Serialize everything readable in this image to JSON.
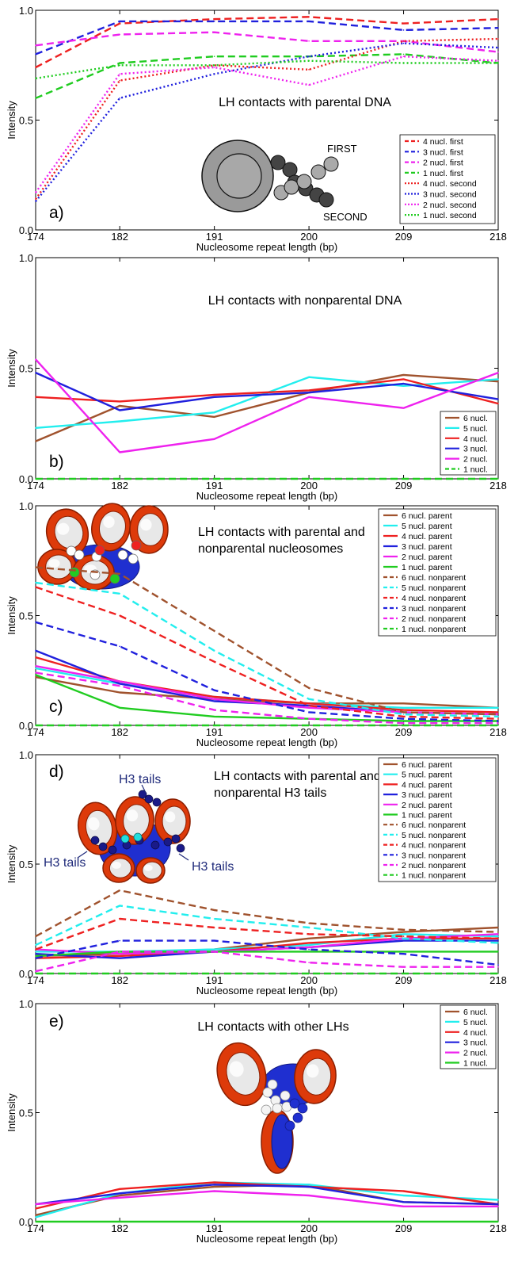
{
  "chart_data": [
    {
      "panel_label": "a)",
      "type": "line",
      "title": "LH contacts with parental DNA",
      "xlabel": "Nucleosome repeat length (bp)",
      "ylabel": "Intensity",
      "x": [
        174,
        182,
        191,
        200,
        209,
        218
      ],
      "x_ticks": [
        "174",
        "182",
        "191",
        "200",
        "209",
        "218"
      ],
      "y_ticks": [
        "0.0",
        "0.5",
        "1.0"
      ],
      "ylim": [
        0,
        1
      ],
      "legend_position": "bottom-right",
      "inset_labels": [
        "FIRST",
        "SECOND"
      ],
      "series": [
        {
          "name": "4 nucl. first",
          "color": "#ee2020",
          "style": "dashed",
          "values": [
            0.74,
            0.94,
            0.96,
            0.97,
            0.94,
            0.96
          ]
        },
        {
          "name": "3 nucl. first",
          "color": "#2020dd",
          "style": "dashed",
          "values": [
            0.8,
            0.95,
            0.95,
            0.95,
            0.91,
            0.92
          ]
        },
        {
          "name": "2 nucl. first",
          "color": "#ee22ee",
          "style": "dashed",
          "values": [
            0.84,
            0.89,
            0.9,
            0.86,
            0.86,
            0.81
          ]
        },
        {
          "name": "1 nucl. first",
          "color": "#20cc20",
          "style": "dashed",
          "values": [
            0.6,
            0.76,
            0.79,
            0.79,
            0.8,
            0.76
          ]
        },
        {
          "name": "4 nucl. second",
          "color": "#ee2020",
          "style": "dotted",
          "values": [
            0.14,
            0.68,
            0.75,
            0.73,
            0.86,
            0.87
          ]
        },
        {
          "name": "3 nucl. second",
          "color": "#2020dd",
          "style": "dotted",
          "values": [
            0.13,
            0.6,
            0.71,
            0.79,
            0.85,
            0.83
          ]
        },
        {
          "name": "2 nucl. second",
          "color": "#ee22ee",
          "style": "dotted",
          "values": [
            0.17,
            0.71,
            0.74,
            0.66,
            0.79,
            0.77
          ]
        },
        {
          "name": "1 nucl. second",
          "color": "#20cc20",
          "style": "dotted",
          "values": [
            0.69,
            0.75,
            0.75,
            0.77,
            0.76,
            0.76
          ]
        }
      ]
    },
    {
      "panel_label": "b)",
      "type": "line",
      "title": "LH contacts with nonparental DNA",
      "xlabel": "Nucleosome repeat length (bp)",
      "ylabel": "Intensity",
      "x": [
        174,
        182,
        191,
        200,
        209,
        218
      ],
      "x_ticks": [
        "174",
        "182",
        "191",
        "200",
        "209",
        "218"
      ],
      "y_ticks": [
        "0.0",
        "0.5",
        "1.0"
      ],
      "ylim": [
        0,
        1
      ],
      "legend_position": "bottom-right",
      "series": [
        {
          "name": "6 nucl.",
          "color": "#a0522d",
          "style": "solid",
          "values": [
            0.17,
            0.33,
            0.28,
            0.39,
            0.47,
            0.44
          ]
        },
        {
          "name": "5 nucl.",
          "color": "#22eeee",
          "style": "solid",
          "values": [
            0.23,
            0.26,
            0.3,
            0.46,
            0.42,
            0.45
          ]
        },
        {
          "name": "4 nucl.",
          "color": "#ee2020",
          "style": "solid",
          "values": [
            0.37,
            0.35,
            0.38,
            0.4,
            0.45,
            0.34
          ]
        },
        {
          "name": "3 nucl.",
          "color": "#2020dd",
          "style": "solid",
          "values": [
            0.48,
            0.31,
            0.37,
            0.39,
            0.43,
            0.36
          ]
        },
        {
          "name": "2 nucl.",
          "color": "#ee22ee",
          "style": "solid",
          "values": [
            0.54,
            0.12,
            0.18,
            0.37,
            0.32,
            0.48
          ]
        },
        {
          "name": "1 nucl.",
          "color": "#20cc20",
          "style": "dashed",
          "values": [
            0.0,
            0.0,
            0.0,
            0.0,
            0.0,
            0.0
          ]
        }
      ]
    },
    {
      "panel_label": "c)",
      "type": "line",
      "title": "LH contacts with parental and nonparental nucleosomes",
      "title_lines": [
        "LH contacts with parental and",
        "nonparental nucleosomes"
      ],
      "xlabel": "Nucleosome repeat length (bp)",
      "ylabel": "Intensity",
      "x": [
        174,
        182,
        191,
        200,
        209,
        218
      ],
      "x_ticks": [
        "174",
        "182",
        "191",
        "200",
        "209",
        "218"
      ],
      "y_ticks": [
        "0.0",
        "0.5",
        "1.0"
      ],
      "ylim": [
        0,
        1
      ],
      "legend_position": "top-right",
      "series": [
        {
          "name": "6 nucl. parent",
          "color": "#a0522d",
          "style": "solid",
          "values": [
            0.22,
            0.15,
            0.12,
            0.1,
            0.1,
            0.08
          ]
        },
        {
          "name": "5 nucl. parent",
          "color": "#22eeee",
          "style": "solid",
          "values": [
            0.26,
            0.19,
            0.13,
            0.1,
            0.08,
            0.08
          ]
        },
        {
          "name": "4 nucl. parent",
          "color": "#ee2020",
          "style": "solid",
          "values": [
            0.31,
            0.2,
            0.13,
            0.1,
            0.07,
            0.06
          ]
        },
        {
          "name": "3 nucl. parent",
          "color": "#2020dd",
          "style": "solid",
          "values": [
            0.34,
            0.19,
            0.11,
            0.09,
            0.06,
            0.05
          ]
        },
        {
          "name": "2 nucl. parent",
          "color": "#ee22ee",
          "style": "solid",
          "values": [
            0.27,
            0.2,
            0.12,
            0.08,
            0.06,
            0.05
          ]
        },
        {
          "name": "1 nucl. parent",
          "color": "#20cc20",
          "style": "solid",
          "values": [
            0.23,
            0.08,
            0.04,
            0.03,
            0.02,
            0.02
          ]
        },
        {
          "name": "6 nucl. nonparent",
          "color": "#a0522d",
          "style": "dashed",
          "values": [
            0.72,
            0.69,
            0.43,
            0.17,
            0.06,
            0.05
          ]
        },
        {
          "name": "5 nucl. nonparent",
          "color": "#22eeee",
          "style": "dashed",
          "values": [
            0.65,
            0.6,
            0.34,
            0.12,
            0.05,
            0.04
          ]
        },
        {
          "name": "4 nucl. nonparent",
          "color": "#ee2020",
          "style": "dashed",
          "values": [
            0.63,
            0.5,
            0.29,
            0.09,
            0.04,
            0.03
          ]
        },
        {
          "name": "3 nucl. nonparent",
          "color": "#2020dd",
          "style": "dashed",
          "values": [
            0.47,
            0.36,
            0.16,
            0.06,
            0.03,
            0.02
          ]
        },
        {
          "name": "2 nucl. nonparent",
          "color": "#ee22ee",
          "style": "dashed",
          "values": [
            0.24,
            0.18,
            0.07,
            0.03,
            0.01,
            0.01
          ]
        },
        {
          "name": "1 nucl. nonparent",
          "color": "#20cc20",
          "style": "dashed",
          "values": [
            0.0,
            0.0,
            0.0,
            0.0,
            0.0,
            0.0
          ]
        }
      ]
    },
    {
      "panel_label": "d)",
      "type": "line",
      "title": "LH contacts with parental and nonparental H3 tails",
      "title_lines": [
        "LH contacts with parental and",
        "nonparental H3 tails"
      ],
      "xlabel": "Nucleosome repeat length (bp)",
      "ylabel": "Intensity",
      "x": [
        174,
        182,
        191,
        200,
        209,
        218
      ],
      "x_ticks": [
        "174",
        "182",
        "191",
        "200",
        "209",
        "218"
      ],
      "y_ticks": [
        "0.0",
        "0.5",
        "1.0"
      ],
      "ylim": [
        0,
        1
      ],
      "legend_position": "top-right",
      "inset_labels": [
        "H3 tails",
        "H3 tails",
        "H3 tails"
      ],
      "series": [
        {
          "name": "6 nucl. parent",
          "color": "#a0522d",
          "style": "solid",
          "values": [
            0.08,
            0.09,
            0.11,
            0.16,
            0.19,
            0.21
          ]
        },
        {
          "name": "5 nucl. parent",
          "color": "#22eeee",
          "style": "solid",
          "values": [
            0.1,
            0.1,
            0.11,
            0.13,
            0.18,
            0.17
          ]
        },
        {
          "name": "4 nucl. parent",
          "color": "#ee2020",
          "style": "solid",
          "values": [
            0.07,
            0.08,
            0.1,
            0.14,
            0.16,
            0.16
          ]
        },
        {
          "name": "3 nucl. parent",
          "color": "#2020dd",
          "style": "solid",
          "values": [
            0.09,
            0.07,
            0.1,
            0.12,
            0.15,
            0.15
          ]
        },
        {
          "name": "2 nucl. parent",
          "color": "#ee22ee",
          "style": "solid",
          "values": [
            0.11,
            0.09,
            0.1,
            0.12,
            0.16,
            0.18
          ]
        },
        {
          "name": "1 nucl. parent",
          "color": "#20cc20",
          "style": "solid",
          "values": [
            0.08,
            0.1,
            0.1,
            0.1,
            0.1,
            0.1
          ]
        },
        {
          "name": "6 nucl. nonparent",
          "color": "#a0522d",
          "style": "dashed",
          "values": [
            0.17,
            0.38,
            0.29,
            0.23,
            0.2,
            0.19
          ]
        },
        {
          "name": "5 nucl. nonparent",
          "color": "#22eeee",
          "style": "dashed",
          "values": [
            0.13,
            0.31,
            0.25,
            0.21,
            0.16,
            0.14
          ]
        },
        {
          "name": "4 nucl. nonparent",
          "color": "#ee2020",
          "style": "dashed",
          "values": [
            0.11,
            0.25,
            0.21,
            0.18,
            0.17,
            0.16
          ]
        },
        {
          "name": "3 nucl. nonparent",
          "color": "#2020dd",
          "style": "dashed",
          "values": [
            0.07,
            0.15,
            0.15,
            0.11,
            0.09,
            0.04
          ]
        },
        {
          "name": "2 nucl. nonparent",
          "color": "#ee22ee",
          "style": "dashed",
          "values": [
            0.01,
            0.1,
            0.1,
            0.05,
            0.03,
            0.03
          ]
        },
        {
          "name": "1 nucl. nonparent",
          "color": "#20cc20",
          "style": "dashed",
          "values": [
            0.0,
            0.0,
            0.0,
            0.0,
            0.0,
            0.0
          ]
        }
      ]
    },
    {
      "panel_label": "e)",
      "type": "line",
      "title": "LH contacts with other LHs",
      "xlabel": "Nucleosome repeat length (bp)",
      "ylabel": "Intensity",
      "x": [
        174,
        182,
        191,
        200,
        209,
        218
      ],
      "x_ticks": [
        "174",
        "182",
        "191",
        "200",
        "209",
        "218"
      ],
      "y_ticks": [
        "0.0",
        "0.5",
        "1.0"
      ],
      "ylim": [
        0,
        1
      ],
      "legend_position": "top-right",
      "series": [
        {
          "name": "6 nucl.",
          "color": "#a0522d",
          "style": "solid",
          "values": [
            0.03,
            0.12,
            0.16,
            0.17,
            0.09,
            0.08
          ]
        },
        {
          "name": "5 nucl.",
          "color": "#22eeee",
          "style": "solid",
          "values": [
            0.02,
            0.13,
            0.18,
            0.17,
            0.12,
            0.1
          ]
        },
        {
          "name": "4 nucl.",
          "color": "#ee2020",
          "style": "solid",
          "values": [
            0.06,
            0.15,
            0.18,
            0.16,
            0.14,
            0.08
          ]
        },
        {
          "name": "3 nucl.",
          "color": "#2020dd",
          "style": "solid",
          "values": [
            0.08,
            0.13,
            0.17,
            0.16,
            0.09,
            0.08
          ]
        },
        {
          "name": "2 nucl.",
          "color": "#ee22ee",
          "style": "solid",
          "values": [
            0.08,
            0.11,
            0.14,
            0.12,
            0.07,
            0.07
          ]
        },
        {
          "name": "1 nucl.",
          "color": "#20cc20",
          "style": "solid",
          "values": [
            0.0,
            0.0,
            0.0,
            0.0,
            0.0,
            0.0
          ]
        }
      ]
    }
  ]
}
